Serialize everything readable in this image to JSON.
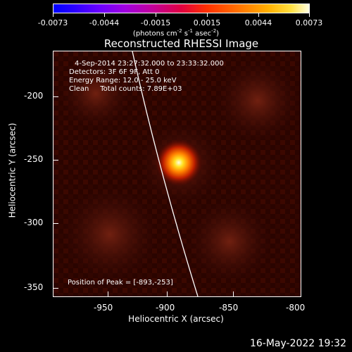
{
  "colorbar": {
    "tick_labels": [
      "-0.0073",
      "-0.0044",
      "-0.0015",
      "0.0015",
      "0.0044",
      "0.0073"
    ],
    "units": "(photons cm",
    "units_exp1": "-2",
    "units_mid": " s",
    "units_exp2": "-1",
    "units_end": " asec",
    "units_exp3": "-2",
    "units_close": ")"
  },
  "title": "Reconstructed RHESSI Image",
  "info": {
    "time_range": "4-Sep-2014 23:27:32.000 to 23:33:32.000",
    "detectors": "Detectors: 3F 6F 9F, Att 0",
    "energy": "Energy Range: 12.0 - 25.0 keV",
    "clean": "Clean     Total counts: 7.89E+03"
  },
  "peak_text": "Position of Peak = [-893,-253]",
  "y_axis": {
    "label": "Heliocentric Y (arcsec)",
    "ticks": [
      "-200",
      "-250",
      "-300",
      "-350"
    ]
  },
  "x_axis": {
    "label": "Heliocentric X (arcsec)",
    "ticks": [
      "-950",
      "-900",
      "-850",
      "-800"
    ]
  },
  "datestamp": "16-May-2022 19:32",
  "colors": {
    "background": "#000000",
    "source": "#ffffcc",
    "limb": "#ffffff"
  }
}
